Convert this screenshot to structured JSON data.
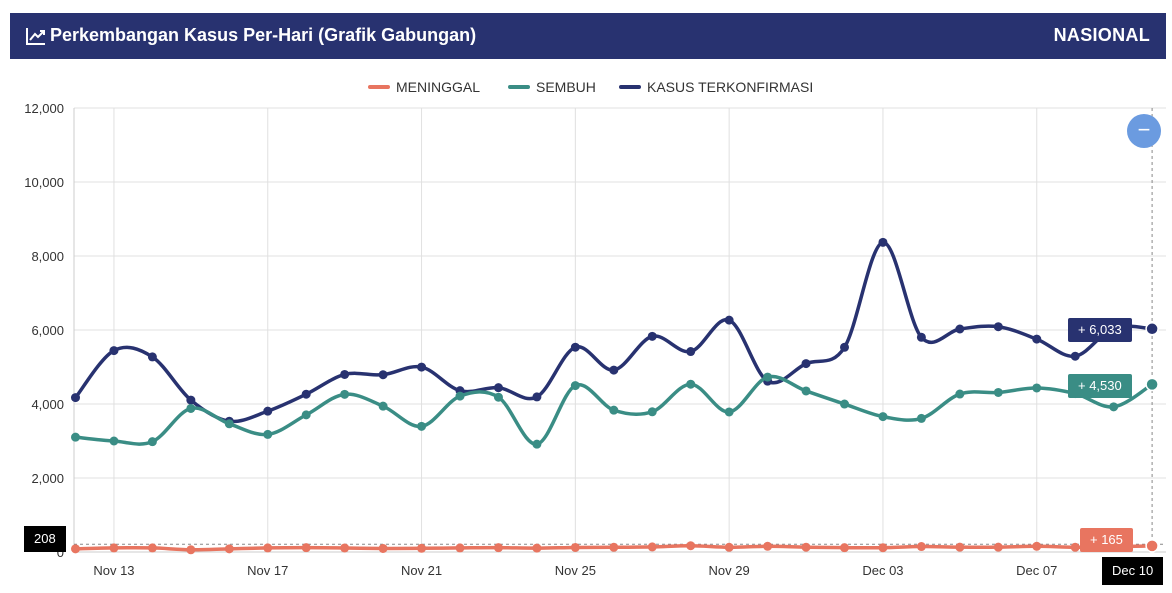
{
  "header": {
    "title": "Perkembangan Kasus Per-Hari (Grafik Gabungan)",
    "region": "NASIONAL",
    "icon": "line-chart-icon"
  },
  "legend": [
    {
      "name": "MENINGGAL",
      "color": "#e87560"
    },
    {
      "name": "SEMBUH",
      "color": "#3a8d85"
    },
    {
      "name": "KASUS TERKONFIRMASI",
      "color": "#283270"
    }
  ],
  "zoom_button": {
    "label": "−",
    "icon": "minus-icon"
  },
  "tooltips": {
    "confirmed": "+ 6,033",
    "recovered": "+ 4,530",
    "deaths": "+ 165"
  },
  "crosshair": {
    "y_label": "208",
    "x_label": "Dec 10"
  },
  "chart_data": {
    "type": "line",
    "x": [
      "2020-11-12",
      "2020-11-13",
      "2020-11-14",
      "2020-11-15",
      "2020-11-16",
      "2020-11-17",
      "2020-11-18",
      "2020-11-19",
      "2020-11-20",
      "2020-11-21",
      "2020-11-22",
      "2020-11-23",
      "2020-11-24",
      "2020-11-25",
      "2020-11-26",
      "2020-11-27",
      "2020-11-28",
      "2020-11-29",
      "2020-11-30",
      "2020-12-01",
      "2020-12-02",
      "2020-12-03",
      "2020-12-04",
      "2020-12-05",
      "2020-12-06",
      "2020-12-07",
      "2020-12-08",
      "2020-12-09",
      "2020-12-10"
    ],
    "x_ticks": [
      "Nov 13",
      "Nov 17",
      "Nov 21",
      "Nov 25",
      "Nov 29",
      "Dec 03",
      "Dec 07"
    ],
    "y_ticks": [
      "0",
      "2,000",
      "4,000",
      "6,000",
      "8,000",
      "10,000",
      "12,000"
    ],
    "ylim": [
      0,
      12000
    ],
    "grid": true,
    "legend_position": "top-center",
    "series": [
      {
        "name": "KASUS TERKONFIRMASI",
        "color": "#283270",
        "values": [
          4173,
          5444,
          5272,
          4106,
          3535,
          3807,
          4265,
          4798,
          4792,
          4998,
          4360,
          4442,
          4192,
          5534,
          4917,
          5828,
          5418,
          6267,
          4617,
          5092,
          5533,
          8369,
          5803,
          6027,
          6089,
          5754,
          5292,
          6058,
          6033
        ]
      },
      {
        "name": "SEMBUH",
        "color": "#3a8d85",
        "values": [
          3104,
          3000,
          2982,
          3880,
          3465,
          3178,
          3706,
          4261,
          3941,
          3396,
          4213,
          4184,
          2914,
          4498,
          3834,
          3790,
          4535,
          3784,
          4728,
          4353,
          3999,
          3660,
          3610,
          4269,
          4312,
          4433,
          4281,
          3923,
          4530
        ]
      },
      {
        "name": "MENINGGAL",
        "color": "#e87560",
        "values": [
          85,
          111,
          110,
          60,
          85,
          110,
          118,
          109,
          95,
          100,
          110,
          118,
          105,
          123,
          127,
          138,
          169,
          128,
          155,
          130,
          118,
          116,
          147,
          131,
          131,
          155,
          127,
          143,
          165
        ]
      }
    ]
  }
}
